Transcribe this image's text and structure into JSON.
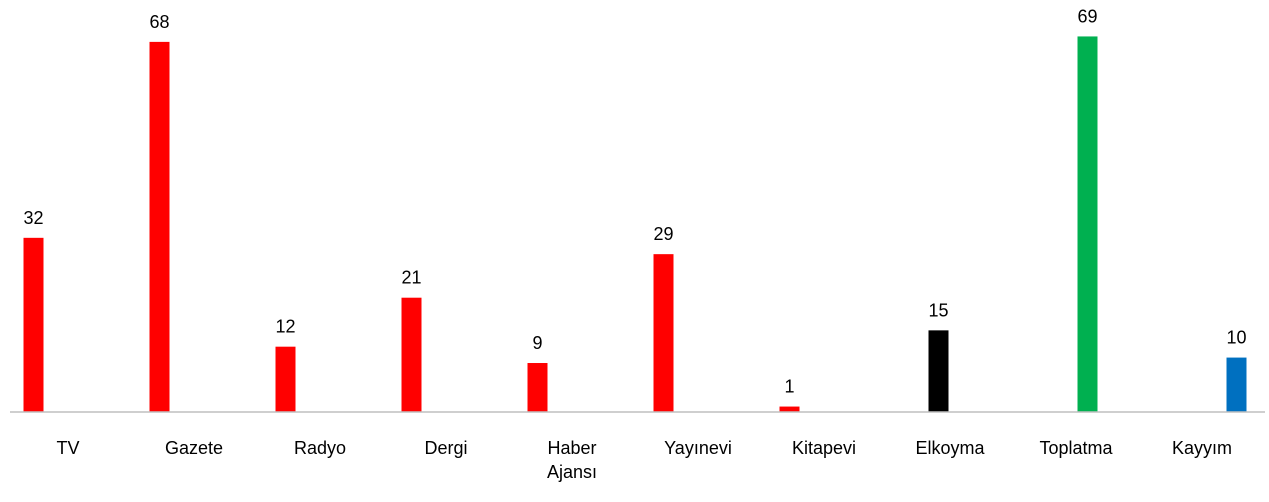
{
  "chart_data": {
    "type": "bar",
    "categories": [
      "TV",
      "Gazete",
      "Radyo",
      "Dergi",
      "Haber Ajansı",
      "Yayınevi",
      "Kitapevi",
      "Elkoyma",
      "Toplatma",
      "Kayyım"
    ],
    "series": [
      {
        "color": "#ff0000",
        "values": [
          32,
          68,
          12,
          21,
          9,
          29,
          1,
          null,
          null,
          null
        ]
      },
      {
        "color": "#000000",
        "values": [
          null,
          null,
          null,
          null,
          null,
          null,
          null,
          15,
          null,
          null
        ]
      },
      {
        "color": "#00b050",
        "values": [
          null,
          null,
          null,
          null,
          null,
          null,
          null,
          null,
          69,
          null
        ]
      },
      {
        "color": "#0070c0",
        "values": [
          null,
          null,
          null,
          null,
          null,
          null,
          null,
          null,
          null,
          10
        ]
      }
    ],
    "ylim": [
      0,
      70
    ]
  }
}
